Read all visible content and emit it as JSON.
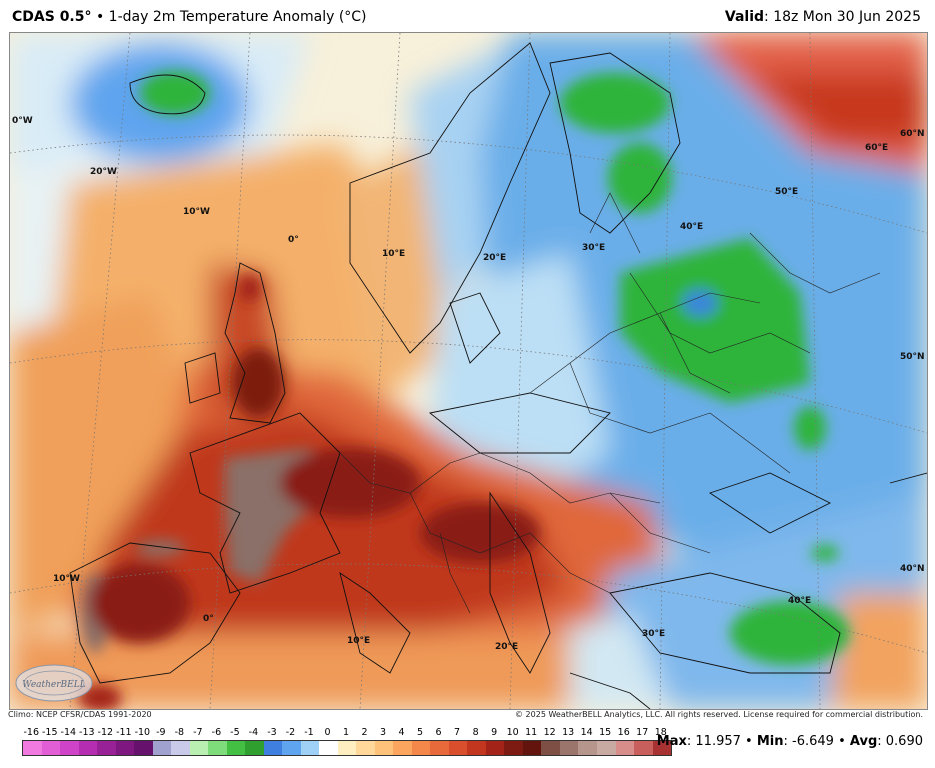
{
  "header": {
    "model": "CDAS 0.5°",
    "separator": "•",
    "product": "1-day 2m Temperature Anomaly (°C)",
    "valid_label": "Valid",
    "valid_time": ": 18z Mon 30 Jun 2025"
  },
  "map": {
    "graticule_labels": [
      "0°W",
      "20°W",
      "10°W",
      "0°",
      "10°E",
      "20°E",
      "30°E",
      "40°E",
      "50°E",
      "60°E",
      "60°N",
      "50°N",
      "40°N",
      "40°E",
      "30°E",
      "20°E",
      "10°E",
      "0°",
      "10°W"
    ],
    "colors": {
      "very_warm": "#6b0f0a",
      "warm": "#c0381b",
      "mild_warm": "#f2a35e",
      "neutral": "#f7f2e1",
      "cool": "#8ec6ee",
      "cold": "#3b86dc",
      "very_cold": "#2fb43b",
      "extreme_warm": "#8a7068"
    }
  },
  "footer": {
    "climo": "Climo: NCEP CFSR/CDAS 1991-2020",
    "copyright": "© 2025 WeatherBELL Analytics, LLC. All rights reserved. License required for commercial distribution."
  },
  "legend": {
    "labels": [
      "-16",
      "-15",
      "-14",
      "-13",
      "-12",
      "-11",
      "-10",
      "-9",
      "-8",
      "-7",
      "-6",
      "-5",
      "-4",
      "-3",
      "-2",
      "-1",
      "0",
      "1",
      "2",
      "3",
      "4",
      "5",
      "6",
      "7",
      "8",
      "9",
      "10",
      "11",
      "12",
      "13",
      "14",
      "15",
      "16",
      "17",
      "18"
    ],
    "colors": [
      "#f07ae0",
      "#e25ed6",
      "#cf43c8",
      "#b52eb2",
      "#992198",
      "#7e1780",
      "#66126d",
      "#a1a1cf",
      "#c9c9ea",
      "#b9efb0",
      "#7fdc7a",
      "#43c043",
      "#2f9f2f",
      "#3f7fe0",
      "#5ea4ee",
      "#9fd0f6",
      "#ffffff",
      "#ffeec0",
      "#ffd89a",
      "#ffc27a",
      "#fba55e",
      "#f4874a",
      "#e8693a",
      "#d94e2c",
      "#c23620",
      "#a32318",
      "#7d1a11",
      "#62140d",
      "#7d4f45",
      "#9b746b",
      "#b5958c",
      "#c9aaa2",
      "#d98d8a",
      "#c95f5d",
      "#a83232"
    ],
    "scale_min": -16,
    "scale_max": 18
  },
  "stats": {
    "max_label": "Max",
    "max_value": ": 11.957",
    "min_label": "Min",
    "min_value": ": -6.649",
    "avg_label": "Avg",
    "avg_value": ": 0.690",
    "sep": "•"
  },
  "logo": {
    "text": "WeatherBELL"
  }
}
